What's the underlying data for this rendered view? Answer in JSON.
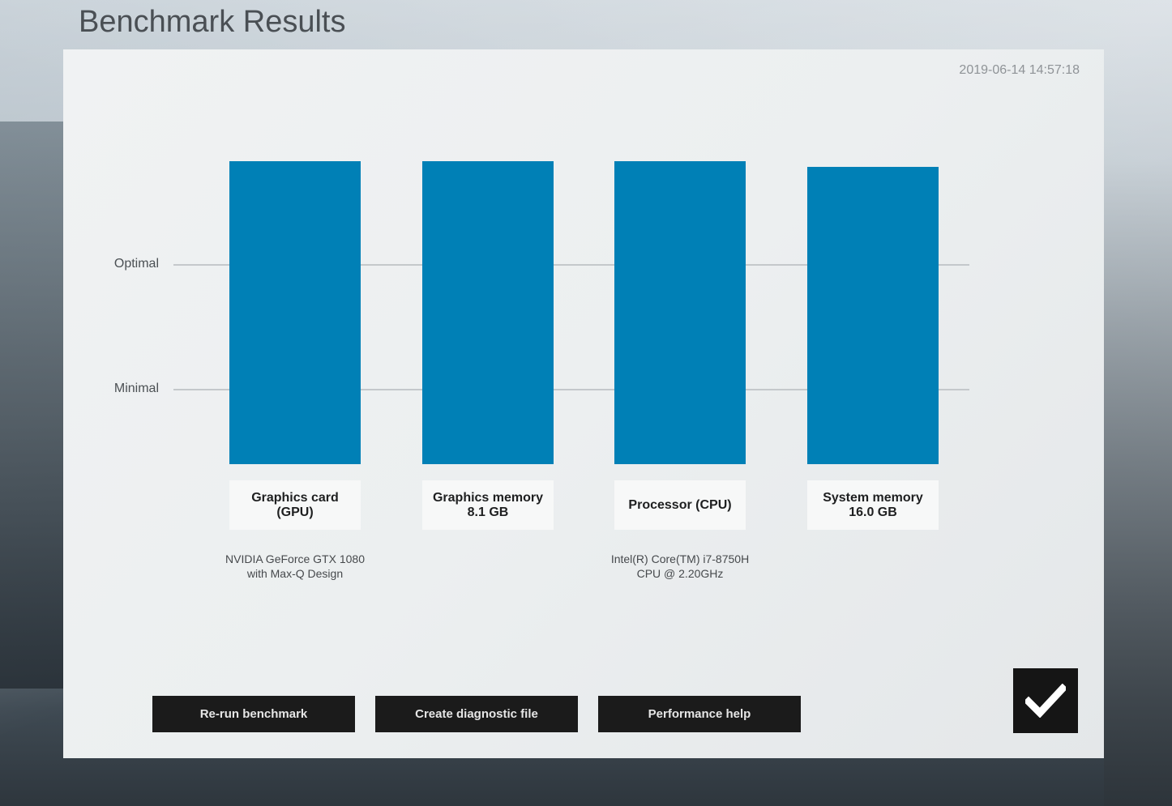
{
  "header": {
    "title": "Benchmark Results"
  },
  "panel": {
    "timestamp": "2019-06-14 14:57:18"
  },
  "levels": {
    "optimal": "Optimal",
    "minimal": "Minimal"
  },
  "colors": {
    "bar": "#0080b6",
    "button_bg": "#1b1b1b"
  },
  "chart_data": {
    "type": "bar",
    "categories": [
      "Graphics card (GPU)",
      "Graphics memory 8.1 GB",
      "Processor (CPU)",
      "System memory 16.0 GB"
    ],
    "values": [
      1.0,
      1.0,
      1.0,
      0.98
    ],
    "reference_levels": [
      "Optimal",
      "Minimal"
    ]
  },
  "components": [
    {
      "name_line1": "Graphics card",
      "name_line2": "(GPU)",
      "detail_line1": "NVIDIA GeForce GTX 1080",
      "detail_line2": "with Max-Q Design"
    },
    {
      "name_line1": "Graphics memory",
      "name_line2": "8.1 GB",
      "detail_line1": "",
      "detail_line2": ""
    },
    {
      "name_line1": "Processor (CPU)",
      "name_line2": "",
      "detail_line1": "Intel(R) Core(TM) i7-8750H",
      "detail_line2": "CPU @ 2.20GHz"
    },
    {
      "name_line1": "System memory",
      "name_line2": "16.0 GB",
      "detail_line1": "",
      "detail_line2": ""
    }
  ],
  "buttons": {
    "rerun": "Re-run benchmark",
    "diagnostic": "Create diagnostic file",
    "help": "Performance help",
    "ok_icon": "checkmark-icon"
  }
}
